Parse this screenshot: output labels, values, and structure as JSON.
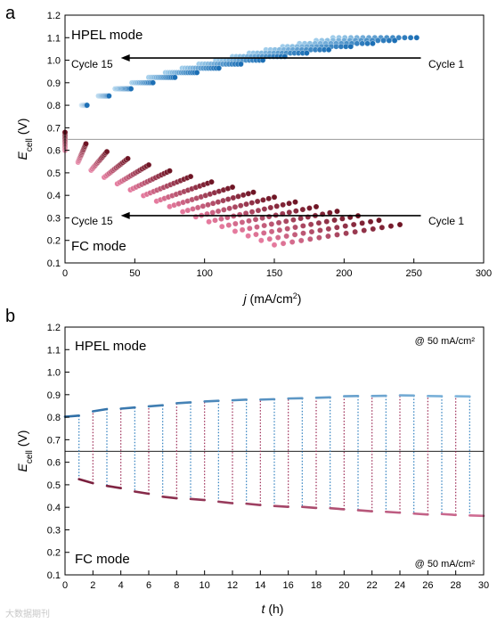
{
  "figure": {
    "panel_a_letter": "a",
    "panel_b_letter": "b",
    "watermark": "大数据期刊"
  },
  "chart_data": [
    {
      "type": "scatter",
      "xlabel_symbol": "j",
      "xlabel_unit": "(mA/cm",
      "xlabel_sup": "2",
      "xlabel_close": ")",
      "ylabel_symbol": "E",
      "ylabel_sub": "cell",
      "ylabel_unit": "(V)",
      "xlim": [
        0,
        300
      ],
      "ylim": [
        0.1,
        1.2
      ],
      "xticks": [
        0,
        50,
        100,
        150,
        200,
        250,
        300
      ],
      "yticks": [
        0.1,
        0.2,
        0.3,
        0.4,
        0.5,
        0.6,
        0.7,
        0.8,
        0.9,
        1.0,
        1.1,
        1.2
      ],
      "reference_line_y": 0.7,
      "mode_labels": {
        "top": "HPEL mode",
        "bottom": "FC mode"
      },
      "annotations": {
        "hpel_arrow": {
          "y": 1.01,
          "from_x": 255,
          "to_x": 40,
          "start_label": "Cycle 1",
          "end_label": "Cycle 15"
        },
        "fc_arrow": {
          "y": 0.31,
          "from_x": 255,
          "to_x": 40,
          "start_label": "Cycle 1",
          "end_label": "Cycle 15"
        }
      },
      "series_model": {
        "cycles": 15,
        "hpel": {
          "start_y": 0.7,
          "cycle1_end": [
            252,
            1.1
          ],
          "cycle15_end": [
            192,
            1.1
          ],
          "exponent": 0.5
        },
        "fc": {
          "start_y": 0.68,
          "cycle1_end": [
            240,
            0.27
          ],
          "cycle1_start_y": 0.68,
          "cycle15_start_y": 0.6,
          "cycle15_end": [
            150,
            0.18
          ],
          "exponent": 0.75
        },
        "points_per_curve": 16
      },
      "colors": {
        "hpel_cycle1": "#1c6fb5",
        "hpel_cycle15": "#9fcdeb",
        "fc_cycle1": "#6e1424",
        "fc_cycle15": "#e57a9e"
      }
    },
    {
      "type": "line",
      "xlabel_symbol": "t",
      "xlabel_unit": "(h)",
      "ylabel_symbol": "E",
      "ylabel_sub": "cell",
      "ylabel_unit": "(V)",
      "xlim": [
        0,
        30
      ],
      "ylim": [
        0.1,
        1.2
      ],
      "xticks": [
        0,
        2,
        4,
        6,
        8,
        10,
        12,
        14,
        16,
        18,
        20,
        22,
        24,
        26,
        28,
        30
      ],
      "yticks": [
        0.1,
        0.2,
        0.3,
        0.4,
        0.5,
        0.6,
        0.7,
        0.8,
        0.9,
        1.0,
        1.1,
        1.2
      ],
      "reference_line_y": 0.7,
      "mode_labels": {
        "top": "HPEL mode",
        "bottom": "FC mode"
      },
      "current_labels": {
        "top": "@ 50 mA/cm²",
        "bottom": "@ 50 mA/cm²"
      },
      "hpel_segments": [
        {
          "t": [
            0,
            1
          ],
          "e": [
            0.802,
            0.807
          ]
        },
        {
          "t": [
            2,
            3
          ],
          "e": [
            0.826,
            0.836
          ]
        },
        {
          "t": [
            4,
            5
          ],
          "e": [
            0.838,
            0.843
          ]
        },
        {
          "t": [
            6,
            7
          ],
          "e": [
            0.848,
            0.853
          ]
        },
        {
          "t": [
            8,
            9
          ],
          "e": [
            0.862,
            0.866
          ]
        },
        {
          "t": [
            10,
            11
          ],
          "e": [
            0.87,
            0.873
          ]
        },
        {
          "t": [
            12,
            13
          ],
          "e": [
            0.875,
            0.878
          ]
        },
        {
          "t": [
            14,
            15
          ],
          "e": [
            0.878,
            0.88
          ]
        },
        {
          "t": [
            16,
            17
          ],
          "e": [
            0.883,
            0.884
          ]
        },
        {
          "t": [
            18,
            19
          ],
          "e": [
            0.886,
            0.888
          ]
        },
        {
          "t": [
            20,
            21
          ],
          "e": [
            0.893,
            0.894
          ]
        },
        {
          "t": [
            22,
            23
          ],
          "e": [
            0.894,
            0.895
          ]
        },
        {
          "t": [
            24,
            25
          ],
          "e": [
            0.897,
            0.896
          ]
        },
        {
          "t": [
            26,
            27
          ],
          "e": [
            0.894,
            0.893
          ]
        },
        {
          "t": [
            28,
            29
          ],
          "e": [
            0.893,
            0.892
          ]
        }
      ],
      "fc_segments": [
        {
          "t": [
            1,
            2
          ],
          "e": [
            0.525,
            0.507
          ]
        },
        {
          "t": [
            3,
            4
          ],
          "e": [
            0.495,
            0.485
          ]
        },
        {
          "t": [
            5,
            6
          ],
          "e": [
            0.47,
            0.46
          ]
        },
        {
          "t": [
            7,
            8
          ],
          "e": [
            0.447,
            0.44
          ]
        },
        {
          "t": [
            9,
            10
          ],
          "e": [
            0.437,
            0.432
          ]
        },
        {
          "t": [
            11,
            12
          ],
          "e": [
            0.425,
            0.418
          ]
        },
        {
          "t": [
            13,
            14
          ],
          "e": [
            0.416,
            0.41
          ]
        },
        {
          "t": [
            15,
            16
          ],
          "e": [
            0.406,
            0.402
          ]
        },
        {
          "t": [
            17,
            18
          ],
          "e": [
            0.402,
            0.397
          ]
        },
        {
          "t": [
            19,
            20
          ],
          "e": [
            0.396,
            0.391
          ]
        },
        {
          "t": [
            21,
            22
          ],
          "e": [
            0.387,
            0.382
          ]
        },
        {
          "t": [
            23,
            24
          ],
          "e": [
            0.38,
            0.376
          ]
        },
        {
          "t": [
            25,
            26
          ],
          "e": [
            0.372,
            0.368
          ]
        },
        {
          "t": [
            27,
            28
          ],
          "e": [
            0.37,
            0.366
          ]
        },
        {
          "t": [
            29,
            30
          ],
          "e": [
            0.364,
            0.362
          ]
        }
      ],
      "colors": {
        "hpel_early": "#2f6fa7",
        "hpel_late": "#7fb5dc",
        "fc_early": "#7a1f3d",
        "fc_late": "#cf6d93",
        "transition_to_fc": "#2f7fbf",
        "transition_to_hpel": "#9c2a55"
      }
    }
  ]
}
